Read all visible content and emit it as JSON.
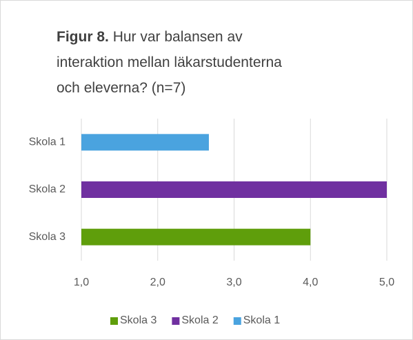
{
  "chart_data": {
    "type": "barh",
    "title_label": "Figur 8.",
    "title_lines": [
      "Hur var balansen av",
      "interaktion mellan läkarstudenterna",
      "och eleverna? (n=7)"
    ],
    "categories": [
      "Skola 3",
      "Skola 2",
      "Skola 1"
    ],
    "values": [
      4.0,
      5.0,
      2.67
    ],
    "colors": [
      "#5f9e0b",
      "#7030a0",
      "#4aa3df"
    ],
    "xlim": [
      1,
      5
    ],
    "xticks": [
      {
        "value": 1,
        "label": "1,0"
      },
      {
        "value": 2,
        "label": "2,0"
      },
      {
        "value": 3,
        "label": "3,0"
      },
      {
        "value": 4,
        "label": "4,0"
      },
      {
        "value": 5,
        "label": "5,0"
      }
    ],
    "grid": true,
    "legend": "bottom"
  }
}
